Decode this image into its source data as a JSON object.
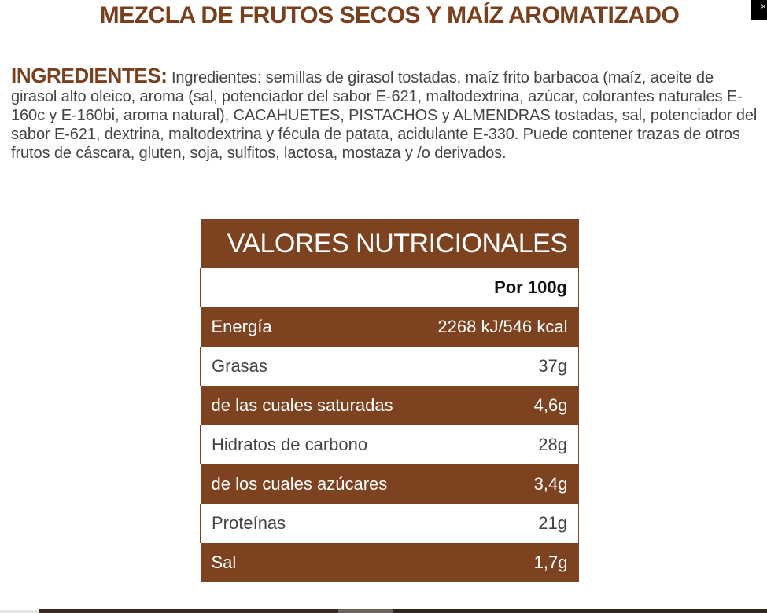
{
  "product": {
    "title": "MEZCLA DE FRUTOS SECOS Y MAÍZ AROMATIZADO"
  },
  "close_button": {
    "label": "×"
  },
  "ingredients": {
    "heading": "INGREDIENTES:",
    "text": "Ingredientes: semillas de girasol tostadas, maíz frito barbacoa (maíz, aceite de girasol alto oleico, aroma (sal, potenciador del sabor E-621, maltodextrina, azúcar, colorantes naturales E-160c y E-160bi, aroma natural), CACAHUETES, PISTACHOS y ALMENDRAS tostadas, sal, potenciador del sabor E-621, dextrina, maltodextrina y fécula de patata, acidulante E-330. Puede contener trazas de otros frutos de cáscara, gluten, soja, sulfitos, lactosa, mostaza y /o derivados."
  },
  "nutrition": {
    "title": "VALORES NUTRICIONALES",
    "column_header": "Por 100g",
    "rows": [
      {
        "label": "Energía",
        "value": "2268 kJ/546 kcal"
      },
      {
        "label": "Grasas",
        "value": "37g"
      },
      {
        "label": "de las cuales saturadas",
        "value": "4,6g"
      },
      {
        "label": "Hidratos de carbono",
        "value": "28g"
      },
      {
        "label": "de los cuales azúcares",
        "value": "3,4g"
      },
      {
        "label": "Proteínas",
        "value": "21g"
      },
      {
        "label": "Sal",
        "value": "1,7g"
      }
    ]
  },
  "colors": {
    "brand_brown": "#7d4320",
    "title_brown": "#7a3f1d",
    "body_text": "#444444"
  }
}
